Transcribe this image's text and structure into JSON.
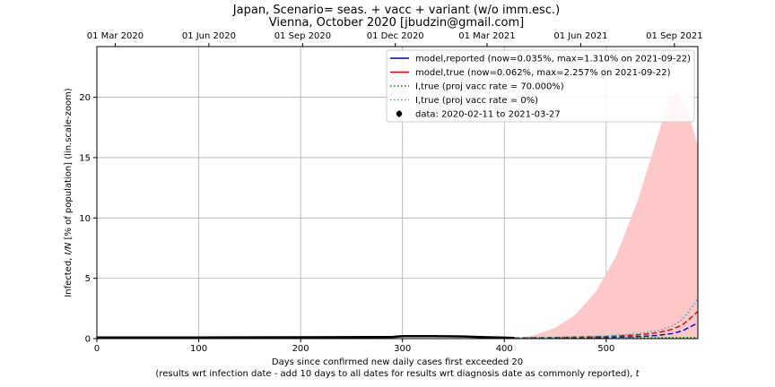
{
  "chart_data": {
    "type": "line",
    "title_line1": "Japan, Scenario= seas. + vacc + variant (w/o imm.esc.)",
    "title_line2": "Vienna, October 2020 [jbudzin@gmail.com]",
    "xlabel": "Days since confirmed new daily cases first exceeded 20",
    "xlabel_note_prefix": "(results wrt infection date - add 10 days to all dates for results wrt diagnosis date as commonly reported), ",
    "xlabel_note_var": "t",
    "ylabel_prefix": "Infected, ",
    "ylabel_var": "I/N",
    "ylabel_suffix": " [% of population] (lin.scale-zoom)",
    "xlim": [
      0,
      590
    ],
    "ylim": [
      0,
      24.2
    ],
    "x_ticks": [
      0,
      100,
      200,
      300,
      400,
      500
    ],
    "x_tick_labels": [
      "0",
      "100",
      "200",
      "300",
      "400",
      "500"
    ],
    "y_ticks": [
      0,
      5,
      10,
      15,
      20
    ],
    "y_tick_labels": [
      "0",
      "5",
      "10",
      "15",
      "20"
    ],
    "top_axis_ticks": [
      {
        "x": 18,
        "label": "01 Mar 2020"
      },
      {
        "x": 110,
        "label": "01 Jun 2020"
      },
      {
        "x": 202,
        "label": "01 Sep 2020"
      },
      {
        "x": 293,
        "label": "01 Dec 2020"
      },
      {
        "x": 383,
        "label": "01 Mar 2021"
      },
      {
        "x": 475,
        "label": "01 Jun 2021"
      },
      {
        "x": 567,
        "label": "01 Sep 2021"
      }
    ],
    "grid": true,
    "legend_position": "top-right",
    "legend": [
      {
        "label": "model,reported (now=0.035%, max=1.310% on 2021-09-22)",
        "color": "#0000cc",
        "style": "solid"
      },
      {
        "label": "model,true (now=0.062%, max=2.257% on 2021-09-22)",
        "color": "#dd0000",
        "style": "solid"
      },
      {
        "label": "I,true (proj vacc rate = 70.000%)",
        "color": "#008800",
        "style": "dotted"
      },
      {
        "label": "I,true (proj vacc rate = 0%)",
        "color": "#00bbbb",
        "style": "dotted"
      },
      {
        "label": "data: 2020-02-11 to 2021-03-27",
        "color": "#000000",
        "style": "marker"
      }
    ],
    "band": {
      "color": "#ffc8c8",
      "x": [
        410,
        430,
        450,
        470,
        490,
        510,
        530,
        550,
        560,
        570,
        580,
        590
      ],
      "upper": [
        0.0,
        0.3,
        0.9,
        2.0,
        3.9,
        6.9,
        11.2,
        16.6,
        19.5,
        20.3,
        18.9,
        16.0
      ],
      "lower": [
        0.0,
        0.0,
        0.0,
        0.0,
        0.0,
        0.0,
        0.0,
        0.0,
        0.0,
        0.0,
        0.0,
        0.0
      ]
    },
    "series": [
      {
        "name": "model,reported (now=0.035%, max=1.310% on 2021-09-22)",
        "color": "#0000cc",
        "style": "dashed",
        "x": [
          410,
          450,
          500,
          530,
          550,
          565,
          575,
          582,
          590
        ],
        "y": [
          0.04,
          0.06,
          0.1,
          0.16,
          0.26,
          0.42,
          0.65,
          0.95,
          1.31
        ]
      },
      {
        "name": "model,true (now=0.062%, max=2.257% on 2021-09-22)",
        "color": "#dd0000",
        "style": "dashed",
        "x": [
          410,
          450,
          500,
          530,
          550,
          565,
          575,
          582,
          590
        ],
        "y": [
          0.06,
          0.1,
          0.18,
          0.3,
          0.48,
          0.78,
          1.15,
          1.65,
          2.26
        ]
      },
      {
        "name": "I,true (proj vacc rate = 70.000%)",
        "color": "#008800",
        "style": "dotted",
        "x": [
          410,
          450,
          500,
          550,
          590
        ],
        "y": [
          0.05,
          0.06,
          0.07,
          0.08,
          0.1
        ]
      },
      {
        "name": "I,true (proj vacc rate = 0%)",
        "color": "#00bbbb",
        "style": "dotted",
        "x": [
          410,
          450,
          500,
          530,
          550,
          565,
          575,
          582,
          590
        ],
        "y": [
          0.07,
          0.12,
          0.22,
          0.4,
          0.65,
          1.05,
          1.6,
          2.35,
          3.3
        ]
      },
      {
        "name": "data: 2020-02-11 to 2021-03-27",
        "color": "#000000",
        "style": "thick",
        "x": [
          0,
          100,
          200,
          290,
          300,
          330,
          360,
          380,
          400,
          410
        ],
        "y": [
          0.1,
          0.1,
          0.11,
          0.14,
          0.2,
          0.2,
          0.18,
          0.12,
          0.08,
          0.06
        ]
      }
    ]
  }
}
